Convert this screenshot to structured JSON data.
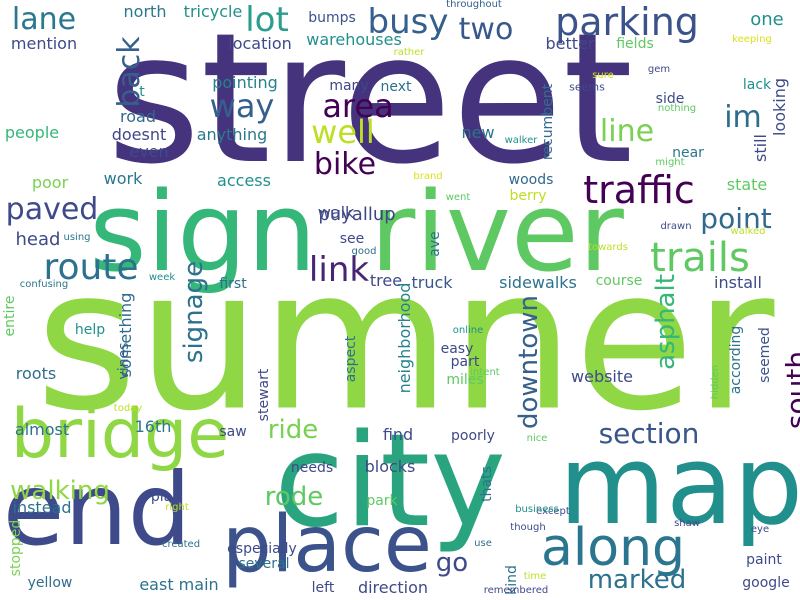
{
  "colors": {
    "background": "#ffffff",
    "palette": [
      "#440154",
      "#482475",
      "#414487",
      "#355f8d",
      "#2a788e",
      "#21908d",
      "#22a884",
      "#44bf70",
      "#7ad151",
      "#bddf26",
      "#fde725"
    ]
  },
  "words": [
    {
      "text": "street",
      "color": "#46337e"
    },
    {
      "text": "sumner",
      "color": "#8fd744"
    },
    {
      "text": "city",
      "color": "#2aa47e"
    },
    {
      "text": "sign",
      "color": "#35b779"
    },
    {
      "text": "river",
      "color": "#5ec962"
    },
    {
      "text": "map",
      "color": "#21908d"
    },
    {
      "text": "end",
      "color": "#3e4a89"
    },
    {
      "text": "place",
      "color": "#3b528b"
    },
    {
      "text": "bridge",
      "color": "#8fd744"
    },
    {
      "text": "along",
      "color": "#2b758e"
    },
    {
      "text": "parking",
      "color": "#3b528b"
    },
    {
      "text": "traffic",
      "color": "#440154"
    },
    {
      "text": "trails",
      "color": "#5ec962"
    },
    {
      "text": "route",
      "color": "#2c728e"
    },
    {
      "text": "link",
      "color": "#482475"
    },
    {
      "text": "busy",
      "color": "#355f8d"
    },
    {
      "text": "lot",
      "color": "#2a9d8f"
    },
    {
      "text": "lane",
      "color": "#2a788e"
    },
    {
      "text": "two",
      "color": "#38588c"
    },
    {
      "text": "area",
      "color": "#440154"
    },
    {
      "text": "way",
      "color": "#355f8d"
    },
    {
      "text": "well",
      "color": "#bddf26"
    },
    {
      "text": "im",
      "color": "#2e6d8e"
    },
    {
      "text": "line",
      "color": "#7ad151"
    },
    {
      "text": "bike",
      "color": "#440154"
    },
    {
      "text": "back",
      "color": "#355f8d"
    },
    {
      "text": "paved",
      "color": "#3e4a89"
    },
    {
      "text": "point",
      "color": "#306a8e"
    },
    {
      "text": "south",
      "color": "#440154"
    },
    {
      "text": "section",
      "color": "#39568c"
    },
    {
      "text": "marked",
      "color": "#2c718e"
    },
    {
      "text": "downtown",
      "color": "#355f8d"
    },
    {
      "text": "walking",
      "color": "#8fd744"
    },
    {
      "text": "rode",
      "color": "#5ec962"
    },
    {
      "text": "signage",
      "color": "#2c728e"
    },
    {
      "text": "ride",
      "color": "#7ad151"
    },
    {
      "text": "asphalt",
      "color": "#35b779"
    },
    {
      "text": "go",
      "color": "#3e4a89"
    },
    {
      "text": "head",
      "color": "#3e4a89"
    },
    {
      "text": "puyallup",
      "color": "#404688"
    },
    {
      "text": "mention",
      "color": "#3e4a89"
    },
    {
      "text": "north",
      "color": "#2a788e"
    },
    {
      "text": "tricycle",
      "color": "#21908d"
    },
    {
      "text": "location",
      "color": "#3e4a89"
    },
    {
      "text": "warehouses",
      "color": "#21908d"
    },
    {
      "text": "bumps",
      "color": "#3b528b"
    },
    {
      "text": "throughout",
      "color": "#355f8d"
    },
    {
      "text": "one",
      "color": "#21908d"
    },
    {
      "text": "better",
      "color": "#3e4a89"
    },
    {
      "text": "fields",
      "color": "#5ec962"
    },
    {
      "text": "rather",
      "color": "#bddf26"
    },
    {
      "text": "keeping",
      "color": "#d8e219"
    },
    {
      "text": "recumbent",
      "color": "#2e6e8e"
    },
    {
      "text": "gem",
      "color": "#3e4a89"
    },
    {
      "text": "sure",
      "color": "#d8e219"
    },
    {
      "text": "lack",
      "color": "#21908d"
    },
    {
      "text": "seems",
      "color": "#3e4a89"
    },
    {
      "text": "pointing",
      "color": "#26828e"
    },
    {
      "text": "many",
      "color": "#404688"
    },
    {
      "text": "next",
      "color": "#2e6e8e"
    },
    {
      "text": "side",
      "color": "#3e4a89"
    },
    {
      "text": "nothing",
      "color": "#5ec962"
    },
    {
      "text": "looking",
      "color": "#3e4a89"
    },
    {
      "text": "still",
      "color": "#3e4a89"
    },
    {
      "text": "road",
      "color": "#31688e"
    },
    {
      "text": "doesnt",
      "color": "#404688"
    },
    {
      "text": "anything",
      "color": "#2a788e"
    },
    {
      "text": "people",
      "color": "#35b779"
    },
    {
      "text": "new",
      "color": "#2c728e"
    },
    {
      "text": "walker",
      "color": "#21908d"
    },
    {
      "text": "might",
      "color": "#5ec962"
    },
    {
      "text": "near",
      "color": "#2a788e"
    },
    {
      "text": "even",
      "color": "#3e4a89"
    },
    {
      "text": "work",
      "color": "#2a788e"
    },
    {
      "text": "access",
      "color": "#21908d"
    },
    {
      "text": "poor",
      "color": "#7ad151"
    },
    {
      "text": "brand",
      "color": "#d8e219"
    },
    {
      "text": "went",
      "color": "#5ec962"
    },
    {
      "text": "woods",
      "color": "#31688e"
    },
    {
      "text": "berry",
      "color": "#bddf26"
    },
    {
      "text": "state",
      "color": "#5ec962"
    },
    {
      "text": "walk",
      "color": "#3e4a89"
    },
    {
      "text": "using",
      "color": "#2a788e"
    },
    {
      "text": "see",
      "color": "#3e4a89"
    },
    {
      "text": "good",
      "color": "#2e6e8e"
    },
    {
      "text": "ave",
      "color": "#2c728e"
    },
    {
      "text": "drawn",
      "color": "#3e4a89"
    },
    {
      "text": "towards",
      "color": "#bddf26"
    },
    {
      "text": "walked",
      "color": "#bddf26"
    },
    {
      "text": "week",
      "color": "#21908d"
    },
    {
      "text": "tree",
      "color": "#3e4a89"
    },
    {
      "text": "truck",
      "color": "#39568c"
    },
    {
      "text": "sidewalks",
      "color": "#2c728e"
    },
    {
      "text": "course",
      "color": "#5ec962"
    },
    {
      "text": "install",
      "color": "#3e4a89"
    },
    {
      "text": "confusing",
      "color": "#2a788e"
    },
    {
      "text": "first",
      "color": "#2e6e8e"
    },
    {
      "text": "entire",
      "color": "#5ec962"
    },
    {
      "text": "something",
      "color": "#306a8e"
    },
    {
      "text": "neighborhood",
      "color": "#26828e"
    },
    {
      "text": "help",
      "color": "#21908d"
    },
    {
      "text": "vines",
      "color": "#355f8d"
    },
    {
      "text": "online",
      "color": "#21908d"
    },
    {
      "text": "easy",
      "color": "#3e4a89"
    },
    {
      "text": "according",
      "color": "#2c728e"
    },
    {
      "text": "seemed",
      "color": "#3b528b"
    },
    {
      "text": "roots",
      "color": "#2e6e8e"
    },
    {
      "text": "aspect",
      "color": "#2c728e"
    },
    {
      "text": "intent",
      "color": "#5ec962"
    },
    {
      "text": "part",
      "color": "#3e4a89"
    },
    {
      "text": "website",
      "color": "#3e4a89"
    },
    {
      "text": "hidden",
      "color": "#5ec962"
    },
    {
      "text": "today",
      "color": "#bddf26"
    },
    {
      "text": "stewart",
      "color": "#3e4a89"
    },
    {
      "text": "miles",
      "color": "#5ec962"
    },
    {
      "text": "almost",
      "color": "#2c728e"
    },
    {
      "text": "16th",
      "color": "#2a788e"
    },
    {
      "text": "saw",
      "color": "#3e4a89"
    },
    {
      "text": "find",
      "color": "#3e4a89"
    },
    {
      "text": "poorly",
      "color": "#3e4a89"
    },
    {
      "text": "needs",
      "color": "#3e4a89"
    },
    {
      "text": "blocks",
      "color": "#3e4a89"
    },
    {
      "text": "nice",
      "color": "#5ec962"
    },
    {
      "text": "plan",
      "color": "#3e4a89"
    },
    {
      "text": "park",
      "color": "#5ec962"
    },
    {
      "text": "thats",
      "color": "#2c728e"
    },
    {
      "text": "instead",
      "color": "#2c728e"
    },
    {
      "text": "right",
      "color": "#bddf26"
    },
    {
      "text": "except",
      "color": "#3e4a89"
    },
    {
      "text": "though",
      "color": "#3e4a89"
    },
    {
      "text": "business",
      "color": "#21908d"
    },
    {
      "text": "shaw",
      "color": "#3e4a89"
    },
    {
      "text": "eye",
      "color": "#3e4a89"
    },
    {
      "text": "created",
      "color": "#2c728e"
    },
    {
      "text": "especially",
      "color": "#3e4a89"
    },
    {
      "text": "use",
      "color": "#2e6e8e"
    },
    {
      "text": "paint",
      "color": "#3e4a89"
    },
    {
      "text": "stopped",
      "color": "#7ad151"
    },
    {
      "text": "several",
      "color": "#2c728e"
    },
    {
      "text": "yellow",
      "color": "#2e6e8e"
    },
    {
      "text": "east main",
      "color": "#2c728e"
    },
    {
      "text": "left",
      "color": "#3e4a89"
    },
    {
      "text": "direction",
      "color": "#3e4a89"
    },
    {
      "text": "kind",
      "color": "#2c728e"
    },
    {
      "text": "time",
      "color": "#bddf26"
    },
    {
      "text": "google",
      "color": "#3e4a89"
    },
    {
      "text": "remembered",
      "color": "#3e4a89"
    },
    {
      "text": "t",
      "color": "#21908d"
    }
  ]
}
